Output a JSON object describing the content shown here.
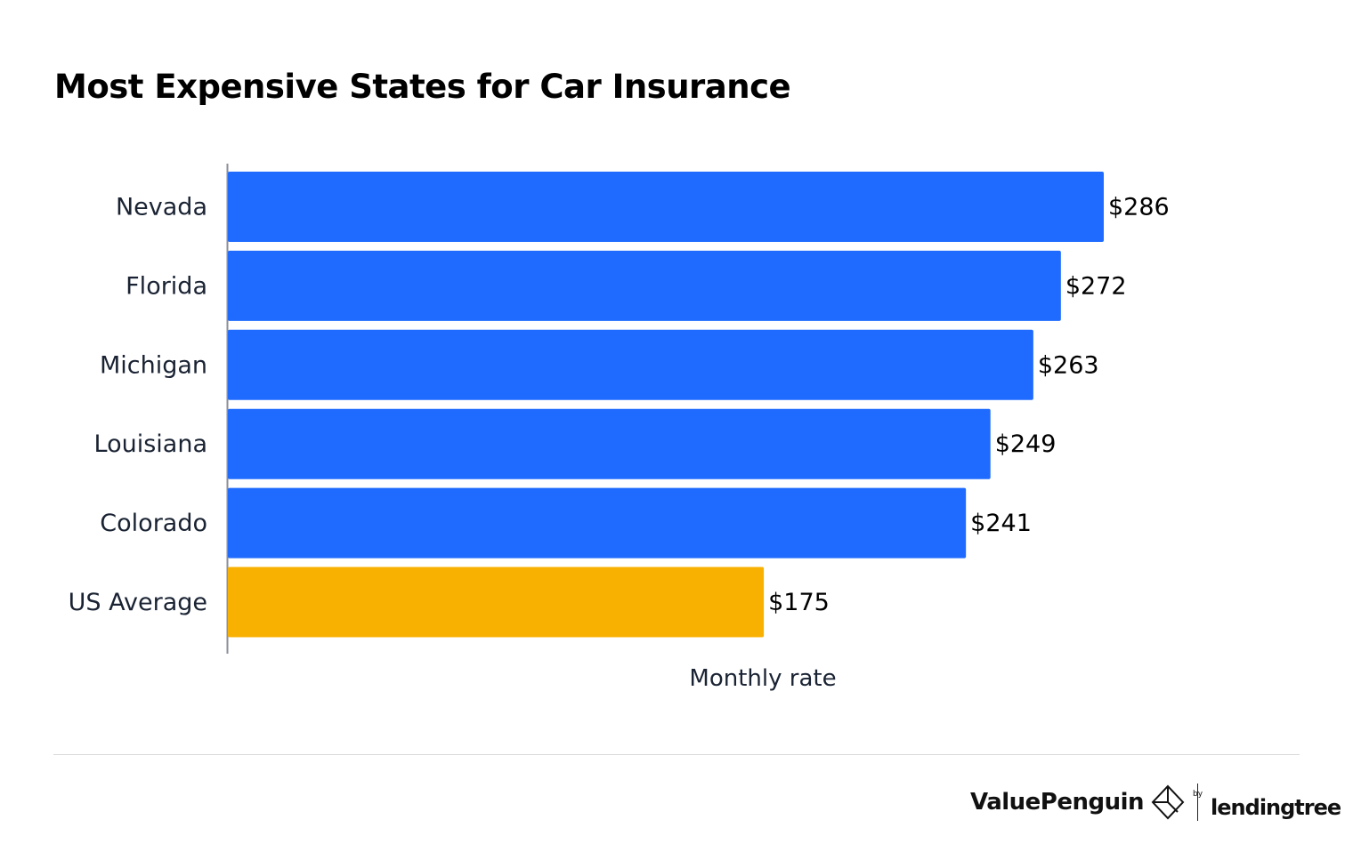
{
  "title": "Most Expensive States for Car Insurance",
  "chart_data": {
    "type": "bar",
    "orientation": "horizontal",
    "title": "Most Expensive States for Car Insurance",
    "xlabel": "Monthly rate",
    "ylabel": "",
    "categories": [
      "Nevada",
      "Florida",
      "Michigan",
      "Louisiana",
      "Colorado",
      "US Average"
    ],
    "values": [
      286,
      272,
      263,
      249,
      241,
      175
    ],
    "data_labels": [
      "$286",
      "$272",
      "$263",
      "$249",
      "$241",
      "$175"
    ],
    "colors": [
      "#1f6bff",
      "#1f6bff",
      "#1f6bff",
      "#1f6bff",
      "#1f6bff",
      "#f8b100"
    ],
    "xlim": [
      0,
      286
    ],
    "grid": false,
    "legend": "none"
  },
  "footer": {
    "brand": "ValuePenguin",
    "by": "by",
    "partner": "lendingtree"
  }
}
